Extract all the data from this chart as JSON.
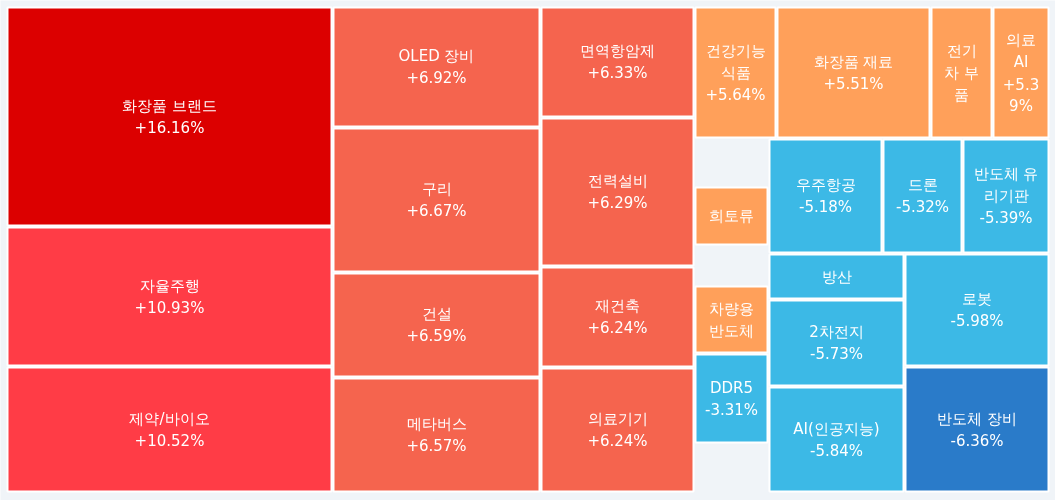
{
  "chart_data": {
    "type": "other",
    "categories": [
      "화장품 브랜드",
      "자율주행",
      "제약/바이오",
      "OLED 장비",
      "구리",
      "건설",
      "메타버스",
      "면역항암제",
      "전력설비",
      "재건축",
      "의료기기",
      "건강기능식품",
      "화장품 재료",
      "전기차 부품",
      "의료 AI",
      "희토류",
      "차량용 반도체",
      "DDR5",
      "우주항공",
      "드론",
      "반도체 유리기판",
      "방산",
      "2차전지",
      "AI(인공지능)",
      "로봇",
      "반도체 장비"
    ],
    "values": [
      16.16,
      10.93,
      10.52,
      6.92,
      6.67,
      6.59,
      6.57,
      6.33,
      6.29,
      6.24,
      6.24,
      5.64,
      5.51,
      null,
      5.39,
      null,
      null,
      -3.31,
      -5.18,
      -5.32,
      -5.39,
      null,
      -5.73,
      -5.84,
      -5.98,
      -6.36
    ],
    "value_labels": [
      "+16.16%",
      "+10.93%",
      "+10.52%",
      "+6.92%",
      "+6.67%",
      "+6.59%",
      "+6.57%",
      "+6.33%",
      "+6.29%",
      "+6.24%",
      "+6.24%",
      "+5.64%",
      "+5.51%",
      null,
      "+5.39%",
      null,
      null,
      "-3.31%",
      "-5.18%",
      "-5.32%",
      "-5.39%",
      null,
      "-5.73%",
      "-5.84%",
      "-5.98%",
      "-6.36%"
    ],
    "colors": [
      "#dc0000",
      "#ff3c46",
      "#ff3c46",
      "#f5644e",
      "#f5644e",
      "#f5644e",
      "#f5644e",
      "#f5644e",
      "#f5644e",
      "#f5644e",
      "#f5644e",
      "#ffa05a",
      "#ffa05a",
      "#ffa05a",
      "#ffa05a",
      "#ffa05a",
      "#ffa05a",
      "#3cb9e6",
      "#3cb9e6",
      "#3cb9e6",
      "#3cb9e6",
      "#3cb9e6",
      "#3cb9e6",
      "#3cb9e6",
      "#3cb9e6",
      "#2a7bc9"
    ]
  }
}
